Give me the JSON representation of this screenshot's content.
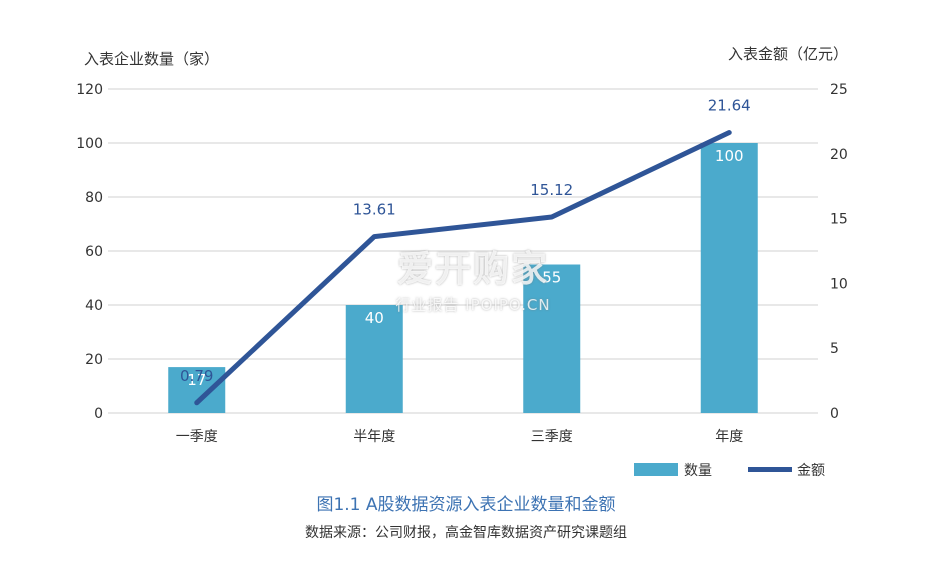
{
  "chart_data": {
    "type": "bar+line",
    "categories": [
      "一季度",
      "半年度",
      "三季度",
      "年度"
    ],
    "series": [
      {
        "name": "数量",
        "type": "bar",
        "axis": "left",
        "values": [
          17,
          40,
          55,
          100
        ],
        "color": "#4baacc"
      },
      {
        "name": "金额",
        "type": "line",
        "axis": "right",
        "values": [
          0.79,
          13.61,
          15.12,
          21.64
        ],
        "color": "#2f5597"
      }
    ],
    "bar_labels": [
      "17",
      "40",
      "55",
      "100"
    ],
    "line_labels": [
      "0.79",
      "13.61",
      "15.12",
      "21.64"
    ],
    "ylabel_left": "入表企业数量（家）",
    "ylabel_right": "入表金额（亿元）",
    "ylim_left": [
      0,
      120
    ],
    "ylim_right": [
      0,
      25
    ],
    "yticks_left": [
      0,
      20,
      40,
      60,
      80,
      100,
      120
    ],
    "yticks_right": [
      0,
      5,
      10,
      15,
      20,
      25
    ],
    "grid": true,
    "legend_position": "bottom-right"
  },
  "caption": "图1.1 A股数据资源入表企业数量和金额",
  "source": "数据来源：公司财报，高金智库数据资产研究课题组",
  "watermark": {
    "main": "爱开购家",
    "sub": "行业报告 IPOIPO.CN"
  }
}
